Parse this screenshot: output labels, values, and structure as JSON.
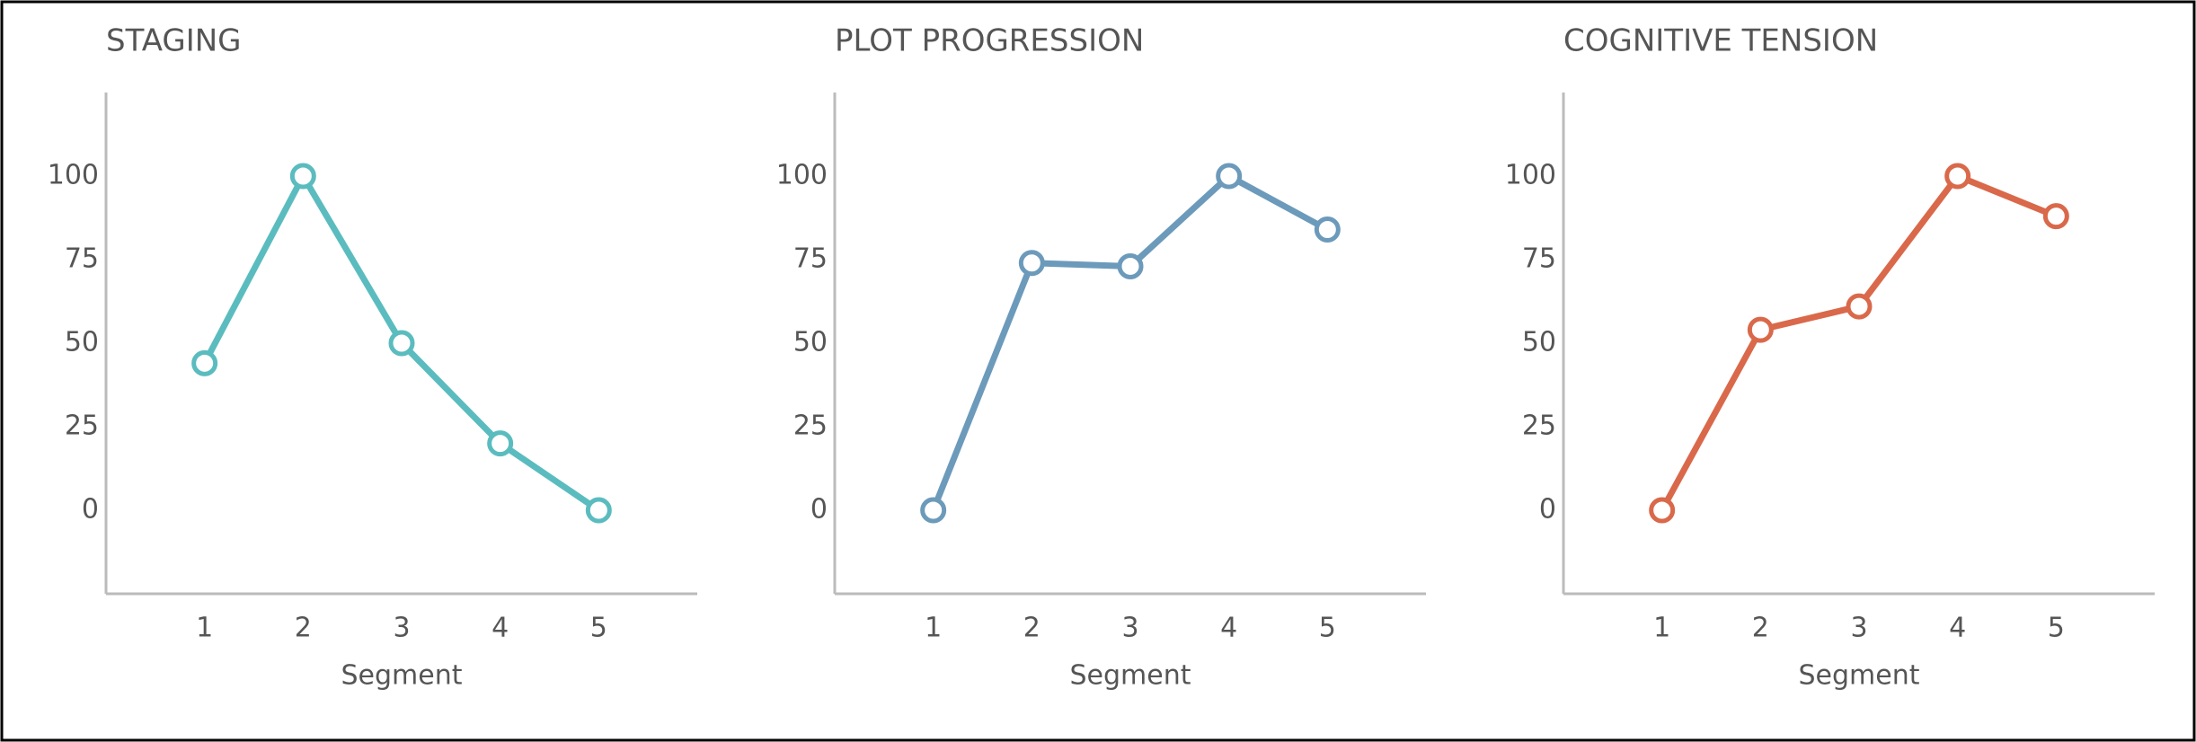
{
  "chart_data": [
    {
      "type": "line",
      "title": "STAGING",
      "x_label": "Segment",
      "x": [
        1,
        2,
        3,
        4,
        5
      ],
      "xlim": [
        0,
        6
      ],
      "xticks": [
        1,
        2,
        3,
        4,
        5
      ],
      "ylim": [
        -25,
        125
      ],
      "yticks": [
        0,
        25,
        50,
        75,
        100
      ],
      "series": [
        {
          "color": "#5bbcbf",
          "values": [
            44,
            100,
            50,
            20,
            0
          ]
        }
      ]
    },
    {
      "type": "line",
      "title": "PLOT PROGRESSION",
      "x_label": "Segment",
      "x": [
        1,
        2,
        3,
        4,
        5
      ],
      "xlim": [
        0,
        6
      ],
      "xticks": [
        1,
        2,
        3,
        4,
        5
      ],
      "ylim": [
        -25,
        125
      ],
      "yticks": [
        0,
        25,
        50,
        75,
        100
      ],
      "series": [
        {
          "color": "#6c9abb",
          "values": [
            0,
            74,
            73,
            100,
            84
          ]
        }
      ]
    },
    {
      "type": "line",
      "title": "COGNITIVE TENSION",
      "x_label": "Segment",
      "x": [
        1,
        2,
        3,
        4,
        5
      ],
      "xlim": [
        0,
        6
      ],
      "xticks": [
        1,
        2,
        3,
        4,
        5
      ],
      "ylim": [
        -25,
        125
      ],
      "yticks": [
        0,
        25,
        50,
        75,
        100
      ],
      "series": [
        {
          "color": "#d9694a",
          "values": [
            0,
            54,
            61,
            100,
            88
          ]
        }
      ]
    }
  ]
}
